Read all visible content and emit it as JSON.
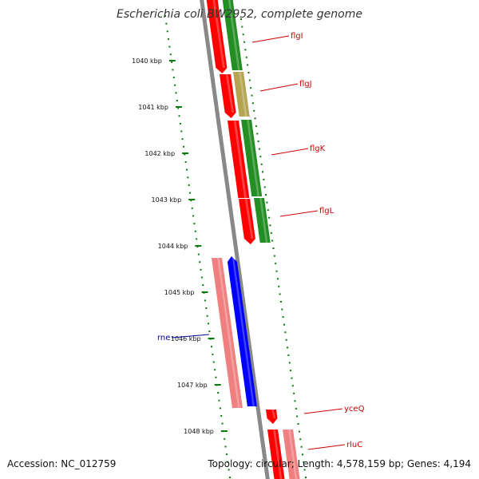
{
  "title": "Escherichia coli BW2952, complete genome",
  "footer": {
    "accession": "Accession: NC_012759",
    "info": "Topology: circular; Length: 4,578,159 bp; Genes: 4,194"
  },
  "colors": {
    "forward_cds": "#ff0000",
    "reverse_cds": "#238e23",
    "blue_feature": "#0000ff",
    "pink_feature": "#f08080",
    "olive_feature": "#b5a452",
    "axis": "#777777",
    "tick": "#0a7a0a",
    "label_red": "#cc0000",
    "label_blue": "#000099"
  },
  "ticks": [
    {
      "kbp": 1040,
      "label": "1040 kbp"
    },
    {
      "kbp": 1041,
      "label": "1041 kbp"
    },
    {
      "kbp": 1042,
      "label": "1042 kbp"
    },
    {
      "kbp": 1043,
      "label": "1043 kbp"
    },
    {
      "kbp": 1044,
      "label": "1044 kbp"
    },
    {
      "kbp": 1045,
      "label": "1045 kbp"
    },
    {
      "kbp": 1046,
      "label": "1046 kbp"
    },
    {
      "kbp": 1047,
      "label": "1047 kbp"
    },
    {
      "kbp": 1048,
      "label": "1048 kbp"
    }
  ],
  "genes": [
    {
      "name": "flgI",
      "color": "red"
    },
    {
      "name": "flgJ",
      "color": "red"
    },
    {
      "name": "flgK",
      "color": "red"
    },
    {
      "name": "flgL",
      "color": "red"
    },
    {
      "name": "rne",
      "color": "blue"
    },
    {
      "name": "yceQ",
      "color": "red"
    },
    {
      "name": "rluC",
      "color": "red"
    }
  ]
}
